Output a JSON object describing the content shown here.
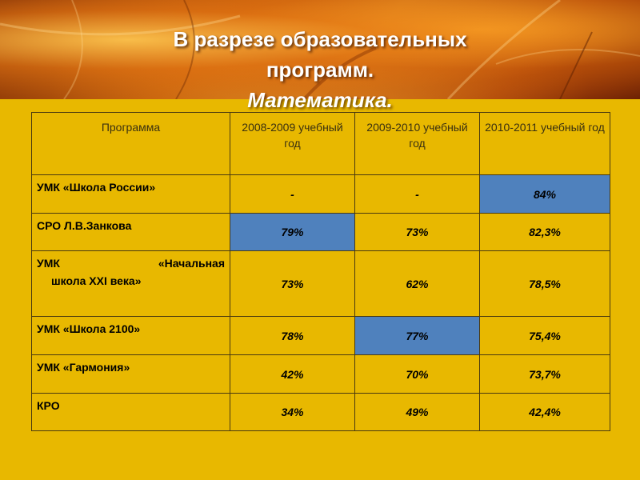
{
  "header": {
    "title_line1": "В разрезе образовательных",
    "title_line2": "программ.",
    "subtitle": "Математика."
  },
  "table": {
    "columns": [
      "Программа",
      "2008-2009 учебный год",
      "2009-2010 учебный год",
      "2010-2011 учебный год"
    ],
    "rows": [
      {
        "program": "УМК «Школа России»",
        "values": [
          "-",
          "-",
          "84%"
        ],
        "highlight": [
          false,
          false,
          true
        ]
      },
      {
        "program": "СРО Л.В.Занкова",
        "values": [
          "79%",
          "73%",
          "82,3%"
        ],
        "highlight": [
          true,
          false,
          false
        ]
      },
      {
        "program_line1_left": "УМК",
        "program_line1_right": "«Начальная",
        "program_line2": "школа XXI века»",
        "values": [
          "73%",
          "62%",
          "78,5%"
        ],
        "highlight": [
          false,
          false,
          false
        ]
      },
      {
        "program": "УМК «Школа 2100»",
        "values": [
          "78%",
          "77%",
          "75,4%"
        ],
        "highlight": [
          false,
          true,
          false
        ]
      },
      {
        "program": "УМК «Гармония»",
        "values": [
          "42%",
          "70%",
          "73,7%"
        ],
        "highlight": [
          false,
          false,
          false
        ]
      },
      {
        "program": "КРО",
        "values": [
          "34%",
          "49%",
          "42,4%"
        ],
        "highlight": [
          false,
          false,
          false
        ]
      }
    ]
  },
  "colors": {
    "background": "#e8b800",
    "highlight": "#4f81bd",
    "border": "#4a3a10"
  }
}
